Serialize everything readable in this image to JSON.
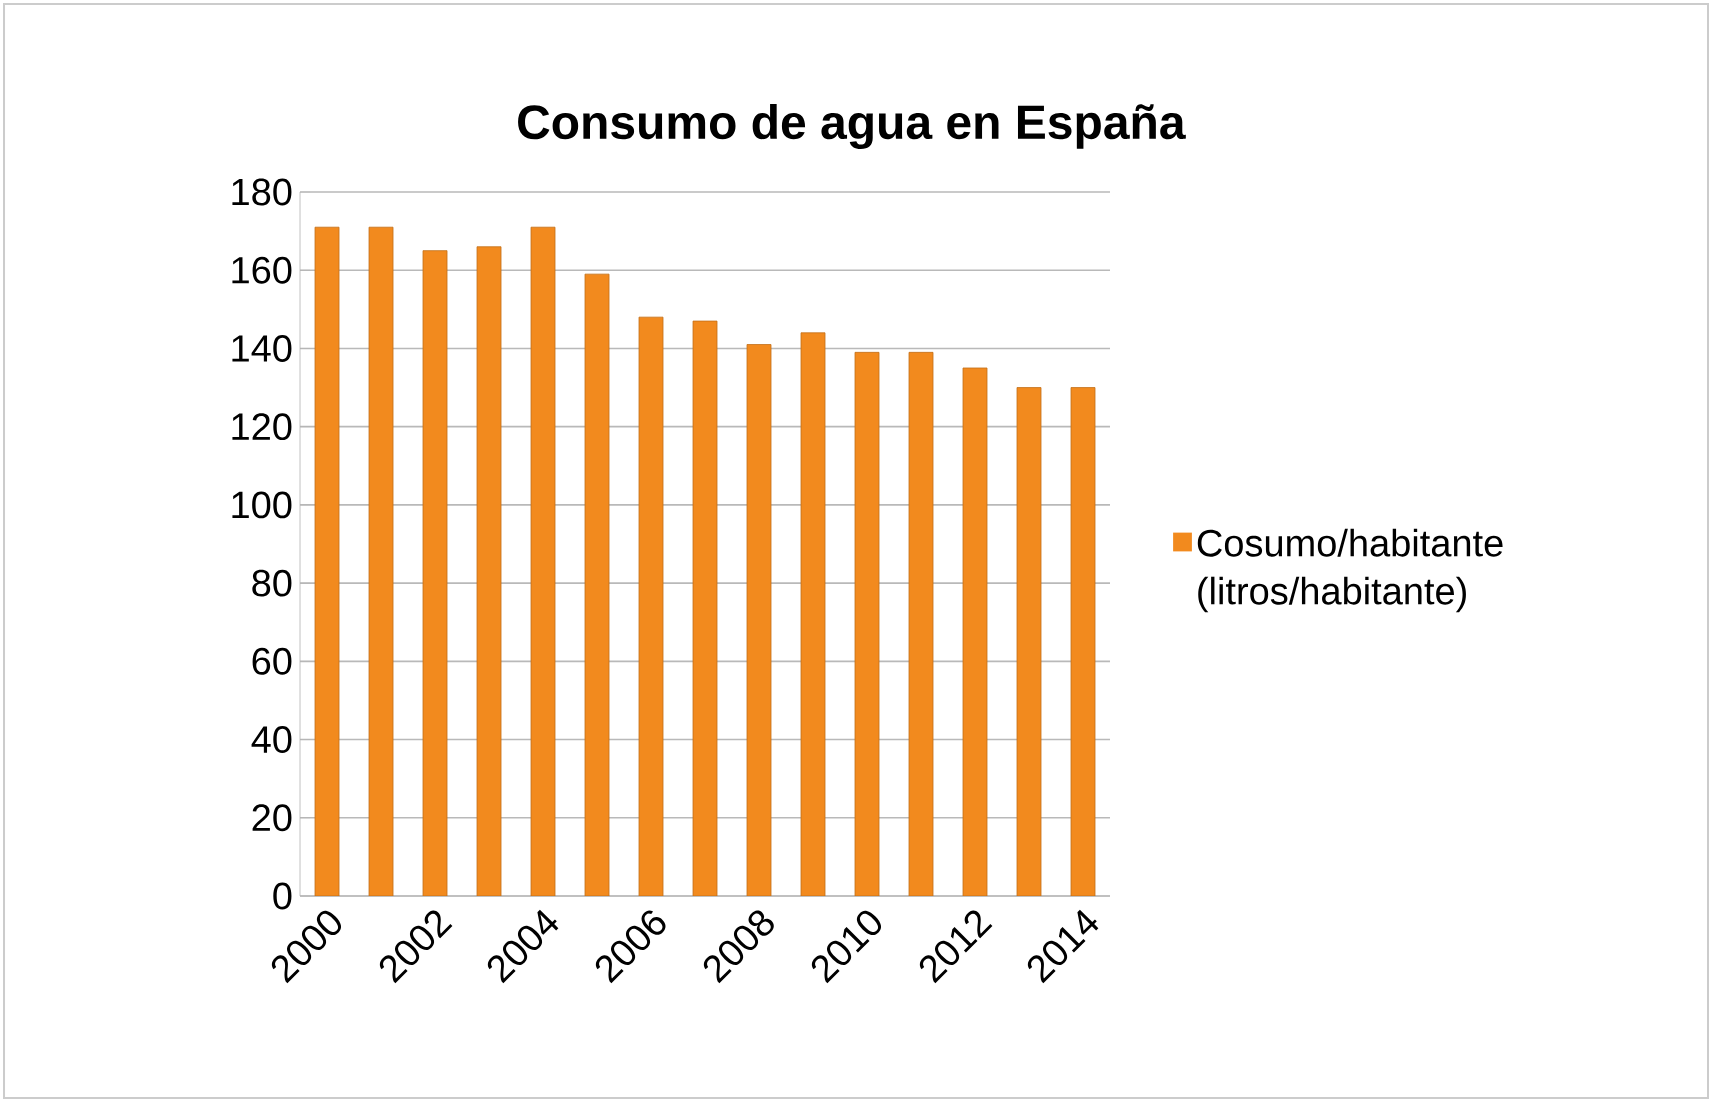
{
  "chart_data": {
    "type": "bar",
    "title": "Consumo de agua en España",
    "categories": [
      "2000",
      null,
      "2002",
      null,
      "2004",
      null,
      "2006",
      null,
      "2008",
      null,
      "2010",
      null,
      "2012",
      null,
      "2014"
    ],
    "series": [
      {
        "name": "Cosumo/habitante (litros/habitante)",
        "color": "#f28a1e",
        "values": [
          171,
          171,
          165,
          166,
          171,
          159,
          148,
          147,
          141,
          144,
          139,
          139,
          135,
          130,
          130
        ]
      }
    ],
    "ylim": [
      0,
      180
    ],
    "yticks": [
      0,
      20,
      40,
      60,
      80,
      100,
      120,
      140,
      160,
      180
    ],
    "grid": "y",
    "legend": "right"
  }
}
